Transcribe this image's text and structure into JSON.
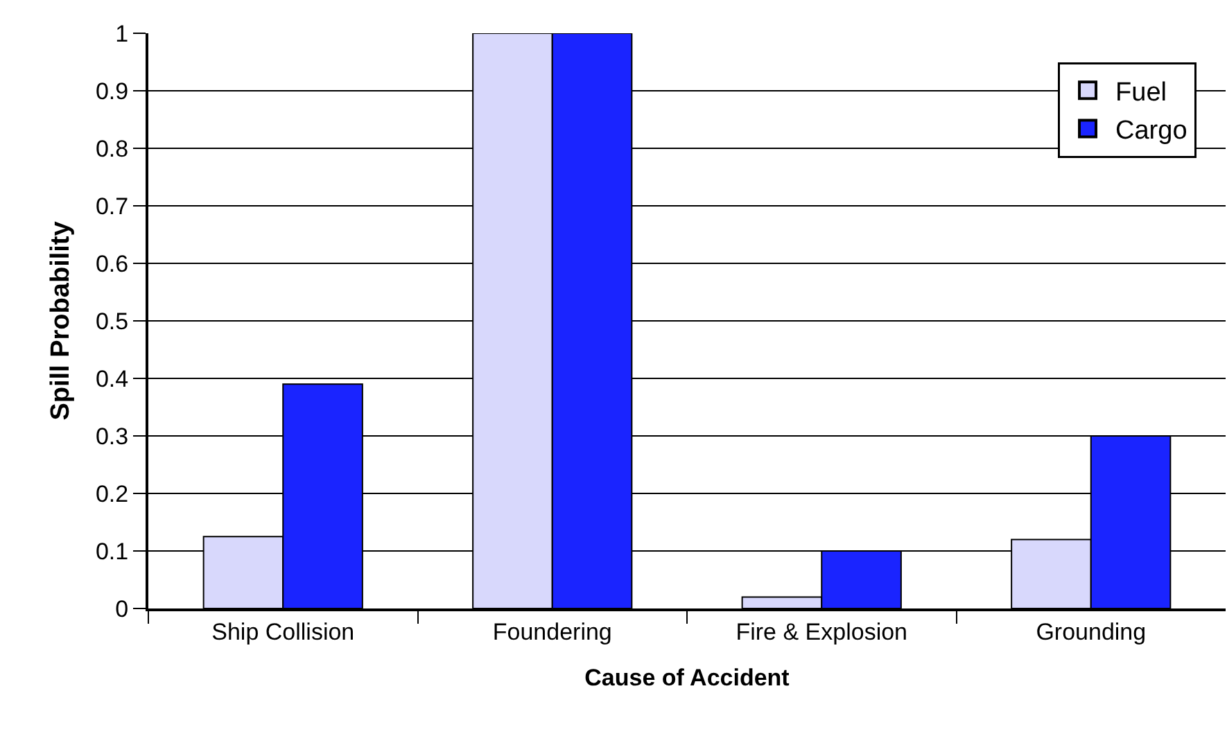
{
  "chart_data": {
    "type": "bar",
    "xlabel": "Cause of Accident",
    "ylabel": "Spill Probability",
    "categories": [
      "Ship Collision",
      "Foundering",
      "Fire & Explosion",
      "Grounding"
    ],
    "series": [
      {
        "name": "Fuel",
        "color": "#d8d8fc",
        "values": [
          0.125,
          1,
          0.02,
          0.12
        ]
      },
      {
        "name": "Cargo",
        "color": "#1a24ff",
        "values": [
          0.39,
          1,
          0.1,
          0.3
        ]
      }
    ],
    "ylim": [
      0,
      1
    ],
    "yticks": [
      0,
      0.1,
      0.2,
      0.3,
      0.4,
      0.5,
      0.6,
      0.7,
      0.8,
      0.9,
      1
    ],
    "grid": "y",
    "legend": "top right"
  }
}
